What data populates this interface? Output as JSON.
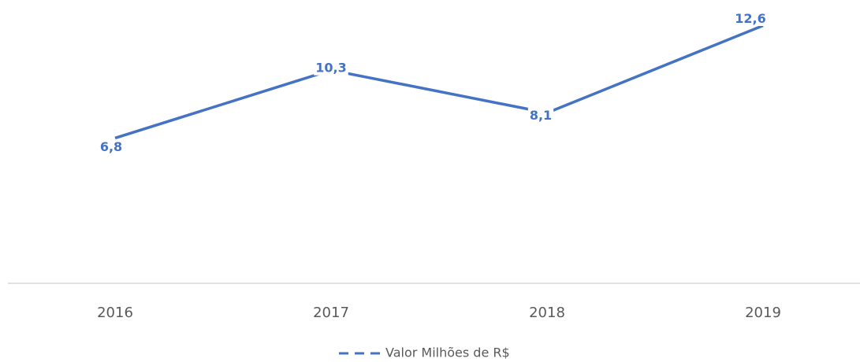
{
  "chart_data": {
    "type": "line",
    "categories": [
      "2016",
      "2017",
      "2018",
      "2019"
    ],
    "series": [
      {
        "name": "Valor Milhões de R$",
        "color": "#4472c4",
        "values": [
          6.8,
          10.3,
          8.1,
          12.6
        ],
        "value_labels": [
          "6,8",
          "10,3",
          "8,1",
          "12,6"
        ]
      }
    ],
    "ylim": [
      0,
      14
    ]
  }
}
